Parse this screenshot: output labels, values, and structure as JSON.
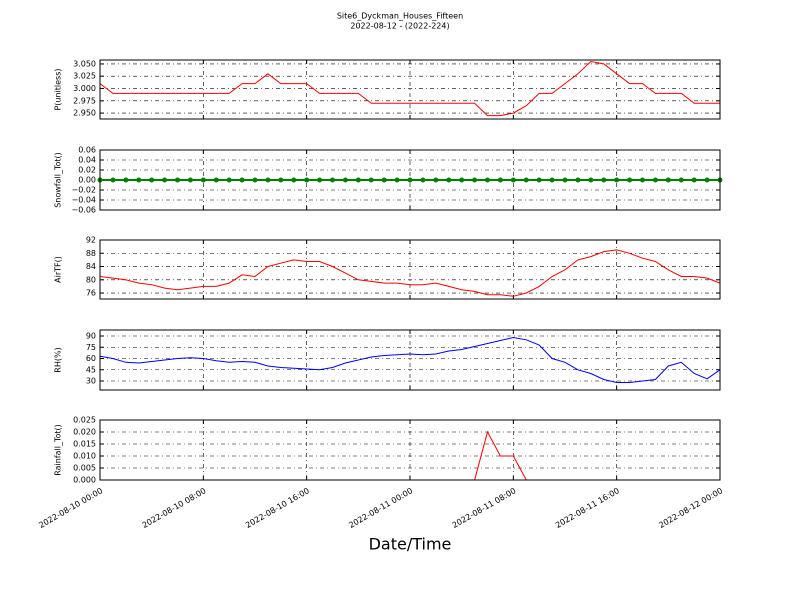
{
  "figure": {
    "title": "Site6_Dyckman_Houses_Fifteen",
    "subtitle": "2022-08-12 - (2022-224)",
    "xlabel": "Date/Time",
    "x": [
      "2022-08-10 00:00",
      "2022-08-10 01:00",
      "2022-08-10 02:00",
      "2022-08-10 03:00",
      "2022-08-10 04:00",
      "2022-08-10 05:00",
      "2022-08-10 06:00",
      "2022-08-10 07:00",
      "2022-08-10 08:00",
      "2022-08-10 09:00",
      "2022-08-10 10:00",
      "2022-08-10 11:00",
      "2022-08-10 12:00",
      "2022-08-10 13:00",
      "2022-08-10 14:00",
      "2022-08-10 15:00",
      "2022-08-10 16:00",
      "2022-08-10 17:00",
      "2022-08-10 18:00",
      "2022-08-10 19:00",
      "2022-08-10 20:00",
      "2022-08-10 21:00",
      "2022-08-10 22:00",
      "2022-08-10 23:00",
      "2022-08-11 00:00",
      "2022-08-11 01:00",
      "2022-08-11 02:00",
      "2022-08-11 03:00",
      "2022-08-11 04:00",
      "2022-08-11 05:00",
      "2022-08-11 06:00",
      "2022-08-11 07:00",
      "2022-08-11 08:00",
      "2022-08-11 09:00",
      "2022-08-11 10:00",
      "2022-08-11 11:00",
      "2022-08-11 12:00",
      "2022-08-11 13:00",
      "2022-08-11 14:00",
      "2022-08-11 15:00",
      "2022-08-11 16:00",
      "2022-08-11 17:00",
      "2022-08-11 18:00",
      "2022-08-11 19:00",
      "2022-08-11 20:00",
      "2022-08-11 21:00",
      "2022-08-11 22:00",
      "2022-08-11 23:00",
      "2022-08-12 00:00"
    ],
    "xlim": [
      "2022-08-10 00:00",
      "2022-08-12 00:00"
    ],
    "xticks": [
      "2022-08-10 00:00",
      "2022-08-10 08:00",
      "2022-08-10 16:00",
      "2022-08-11 00:00",
      "2022-08-11 08:00",
      "2022-08-11 16:00",
      "2022-08-12 00:00"
    ],
    "grid": true
  },
  "chart_data": [
    {
      "type": "line",
      "ylabel": "P(unitless)",
      "color": "#ff0000",
      "ylim": [
        2.938,
        3.058
      ],
      "yticks": [
        {
          "value": 2.95,
          "label": "2.950"
        },
        {
          "value": 2.975,
          "label": "2.975"
        },
        {
          "value": 3.0,
          "label": "3.000"
        },
        {
          "value": 3.025,
          "label": "3.025"
        },
        {
          "value": 3.05,
          "label": "3.050"
        }
      ],
      "values": [
        3.01,
        2.99,
        2.99,
        2.99,
        2.99,
        2.99,
        2.99,
        2.99,
        2.99,
        2.99,
        2.99,
        3.01,
        3.01,
        3.03,
        3.01,
        3.01,
        3.01,
        2.99,
        2.99,
        2.99,
        2.99,
        2.97,
        2.97,
        2.97,
        2.97,
        2.97,
        2.97,
        2.97,
        2.97,
        2.97,
        2.945,
        2.945,
        2.95,
        2.965,
        2.99,
        2.99,
        3.01,
        3.03,
        3.055,
        3.05,
        3.03,
        3.01,
        3.01,
        2.99,
        2.99,
        2.99,
        2.97,
        2.97,
        2.97
      ]
    },
    {
      "type": "scatter",
      "ylabel": "Snowfall_Tot()",
      "color": "#008000",
      "ylim": [
        -0.06,
        0.06
      ],
      "yticks": [
        {
          "value": -0.06,
          "label": "−0.06"
        },
        {
          "value": -0.04,
          "label": "−0.04"
        },
        {
          "value": -0.02,
          "label": "−0.02"
        },
        {
          "value": 0,
          "label": "0.00"
        },
        {
          "value": 0.02,
          "label": "0.02"
        },
        {
          "value": 0.04,
          "label": "0.04"
        },
        {
          "value": 0.06,
          "label": "0.06"
        }
      ],
      "values": [
        0,
        0,
        0,
        0,
        0,
        0,
        0,
        0,
        0,
        0,
        0,
        0,
        0,
        0,
        0,
        0,
        0,
        0,
        0,
        0,
        0,
        0,
        0,
        0,
        0,
        0,
        0,
        0,
        0,
        0,
        0,
        0,
        0,
        0,
        0,
        0,
        0,
        0,
        0,
        0,
        0,
        0,
        0,
        0,
        0,
        0,
        0,
        0,
        0
      ]
    },
    {
      "type": "line",
      "ylabel": "AirTF()",
      "color": "#ff0000",
      "ylim": [
        74.2,
        92
      ],
      "yticks": [
        76,
        80,
        84,
        88,
        92
      ],
      "values": [
        81,
        80.5,
        80,
        79,
        78.5,
        77.5,
        77,
        77.5,
        78,
        78,
        79,
        81.5,
        81,
        84,
        85,
        86,
        85.5,
        85.5,
        84,
        82,
        80,
        79.5,
        79,
        79,
        78.5,
        78.5,
        79,
        78,
        77,
        76.5,
        75.5,
        75.5,
        75,
        76,
        78,
        81,
        83,
        86,
        87,
        88.5,
        89,
        88,
        86.5,
        85.5,
        83,
        81,
        81,
        80.5,
        79
      ]
    },
    {
      "type": "line",
      "ylabel": "RH(%)",
      "color": "#0000ff",
      "ylim": [
        18,
        98
      ],
      "yticks": [
        30,
        45,
        60,
        75,
        90
      ],
      "values": [
        63,
        60,
        55,
        54,
        56,
        58,
        60,
        61,
        60,
        57,
        55,
        56,
        55,
        50,
        48,
        47,
        46,
        45,
        48,
        54,
        58,
        62,
        64,
        65,
        66,
        65,
        66,
        70,
        72,
        76,
        80,
        84,
        88,
        85,
        78,
        60,
        55,
        45,
        40,
        32,
        28,
        28,
        30,
        32,
        50,
        55,
        40,
        33,
        45
      ]
    },
    {
      "type": "line",
      "ylabel": "Rainfall_Tot()",
      "color": "#ff0000",
      "ylim": [
        0,
        0.025
      ],
      "yticks": [
        {
          "value": 0,
          "label": "0.000"
        },
        {
          "value": 0.005,
          "label": "0.005"
        },
        {
          "value": 0.01,
          "label": "0.010"
        },
        {
          "value": 0.015,
          "label": "0.015"
        },
        {
          "value": 0.02,
          "label": "0.020"
        },
        {
          "value": 0.025,
          "label": "0.025"
        }
      ],
      "values": [
        0,
        0,
        0,
        0,
        0,
        0,
        0,
        0,
        0,
        0,
        0,
        0,
        0,
        0,
        0,
        0,
        0,
        0,
        0,
        0,
        0,
        0,
        0,
        0,
        0,
        0,
        0,
        0,
        0,
        0,
        0.02,
        0.01,
        0.01,
        0,
        0,
        0,
        0,
        0,
        0,
        0,
        0,
        0,
        0,
        0,
        0,
        0,
        0,
        0,
        0
      ]
    }
  ]
}
